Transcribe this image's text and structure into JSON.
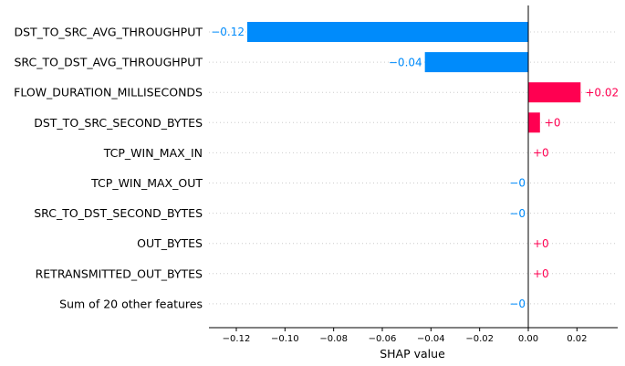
{
  "chart_data": {
    "type": "bar",
    "orientation": "horizontal",
    "xlabel": "SHAP value",
    "ylabel": "",
    "title": "",
    "xlim": [
      -0.13,
      0.036
    ],
    "xticks": [
      -0.12,
      -0.1,
      -0.08,
      -0.06,
      -0.04,
      -0.02,
      0.0,
      0.02
    ],
    "xtick_labels": [
      "−0.12",
      "−0.10",
      "−0.08",
      "−0.06",
      "−0.04",
      "−0.02",
      "0.00",
      "0.02"
    ],
    "categories": [
      "DST_TO_SRC_AVG_THROUGHPUT",
      "SRC_TO_DST_AVG_THROUGHPUT",
      "FLOW_DURATION_MILLISECONDS",
      "DST_TO_SRC_SECOND_BYTES",
      "TCP_WIN_MAX_IN",
      "TCP_WIN_MAX_OUT",
      "SRC_TO_DST_SECOND_BYTES",
      "OUT_BYTES",
      "RETRANSMITTED_OUT_BYTES",
      "Sum of 20 other features"
    ],
    "values": [
      -0.1155,
      -0.0425,
      0.0215,
      0.0048,
      0.0,
      -0.0,
      -0.0,
      0.0,
      0.0,
      -0.0
    ],
    "value_labels": [
      "−0.12",
      "−0.04",
      "+0.02",
      "+0",
      "+0",
      "−0",
      "−0",
      "+0",
      "+0",
      "−0"
    ],
    "colors": {
      "positive": "#ff0051",
      "negative": "#008bfb"
    }
  }
}
